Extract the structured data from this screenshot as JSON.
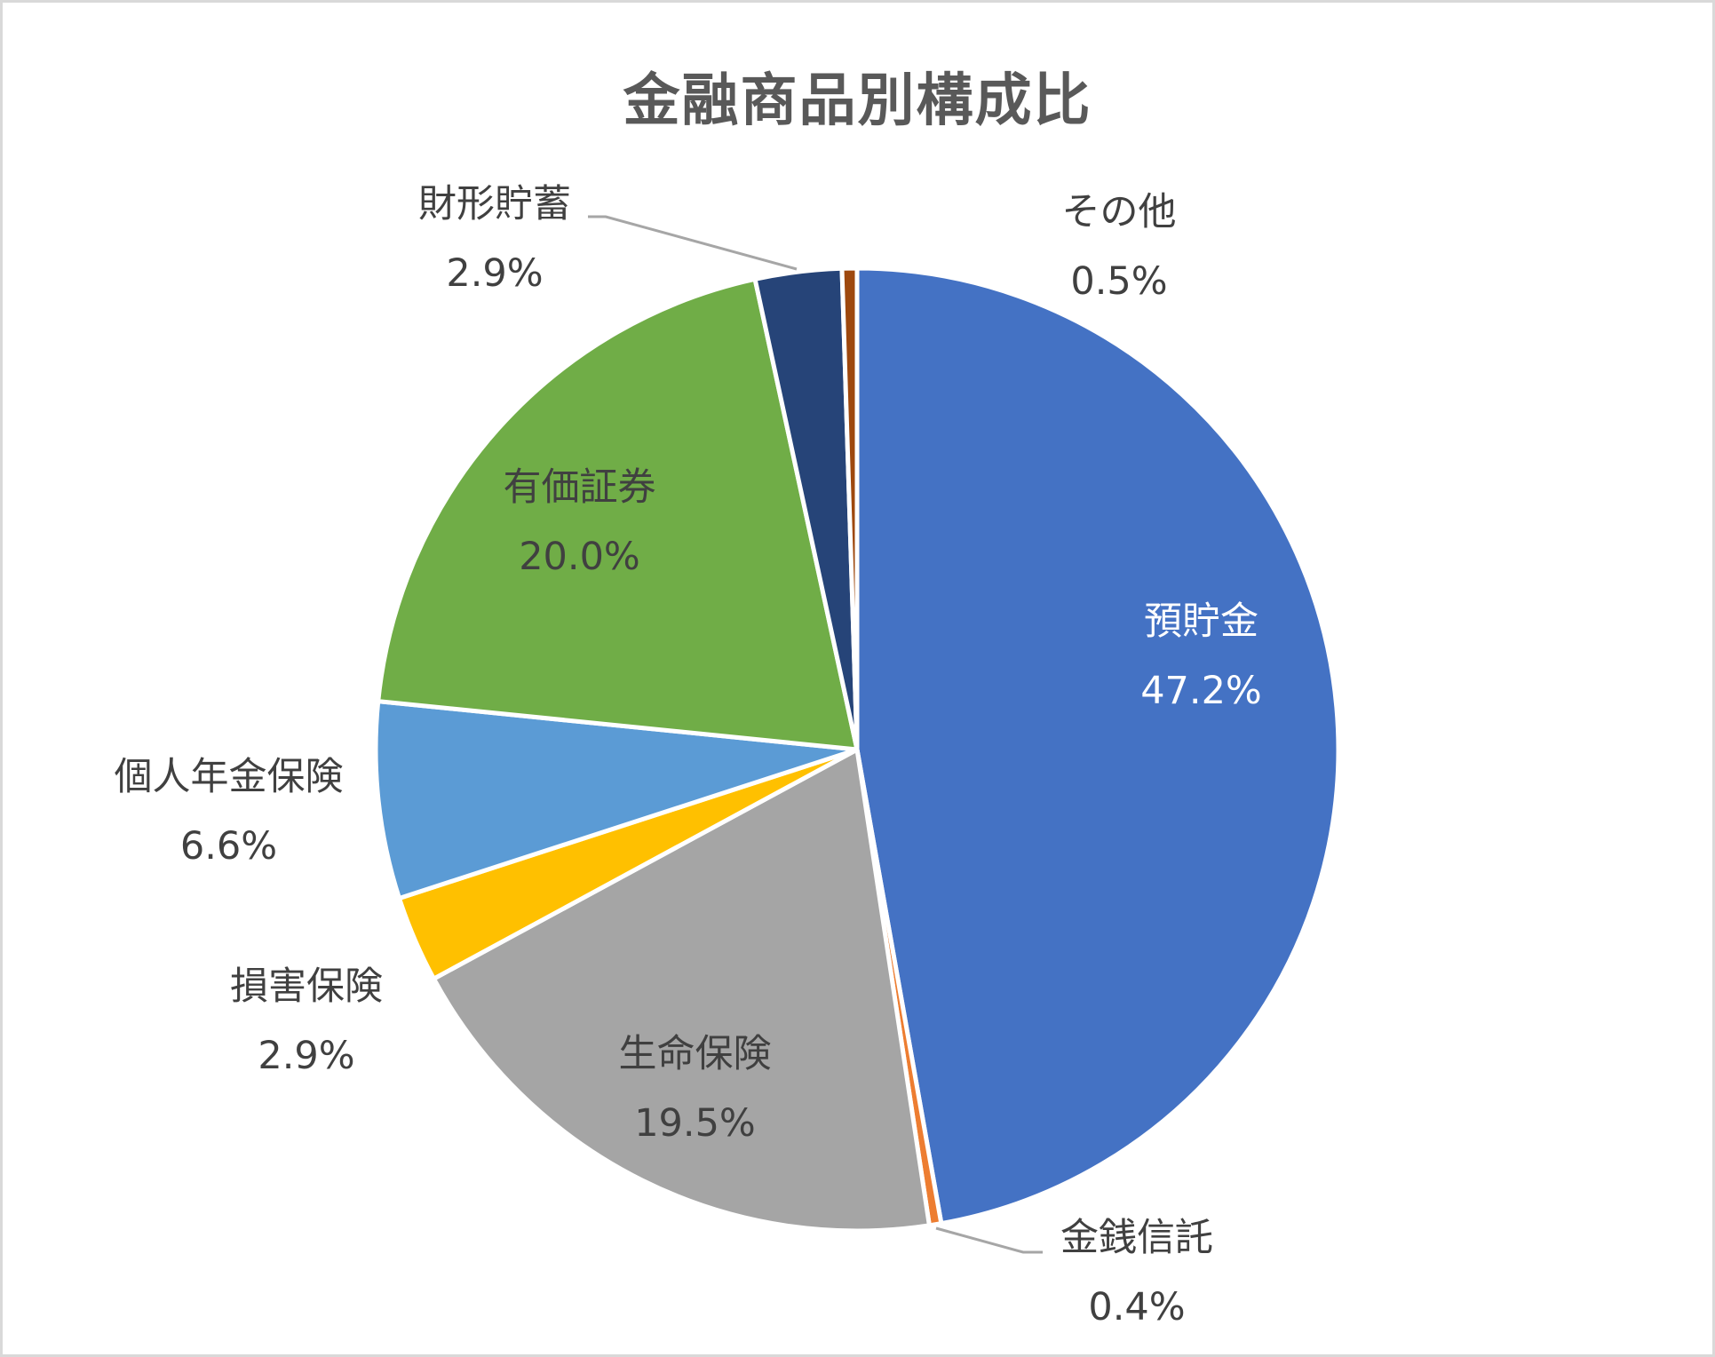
{
  "chart": {
    "title": "金融商品別構成比"
  },
  "labels": [
    {
      "name": "預貯金",
      "pct": "47.2%"
    },
    {
      "name": "金銭信託",
      "pct": "0.4%"
    },
    {
      "name": "生命保険",
      "pct": "19.5%"
    },
    {
      "name": "損害保険",
      "pct": "2.9%"
    },
    {
      "name": "個人年金保険",
      "pct": "6.6%"
    },
    {
      "name": "有価証券",
      "pct": "20.0%"
    },
    {
      "name": "財形貯蓄",
      "pct": "2.9%"
    },
    {
      "name": "その他",
      "pct": "0.5%"
    }
  ],
  "chart_data": {
    "type": "pie",
    "title": "金融商品別構成比",
    "categories": [
      "預貯金",
      "金銭信託",
      "生命保険",
      "損害保険",
      "個人年金保険",
      "有価証券",
      "財形貯蓄",
      "その他"
    ],
    "values": [
      47.2,
      0.4,
      19.5,
      2.9,
      6.6,
      20.0,
      2.9,
      0.5
    ],
    "unit": "%",
    "colors": [
      "#4472C4",
      "#ED7D31",
      "#A5A5A5",
      "#FFC000",
      "#5B9BD5",
      "#70AD47",
      "#264478",
      "#9E480E"
    ],
    "start_angle": "12 o'clock",
    "direction": "clockwise",
    "data_labels": "category name and percentage",
    "legend": "none"
  }
}
